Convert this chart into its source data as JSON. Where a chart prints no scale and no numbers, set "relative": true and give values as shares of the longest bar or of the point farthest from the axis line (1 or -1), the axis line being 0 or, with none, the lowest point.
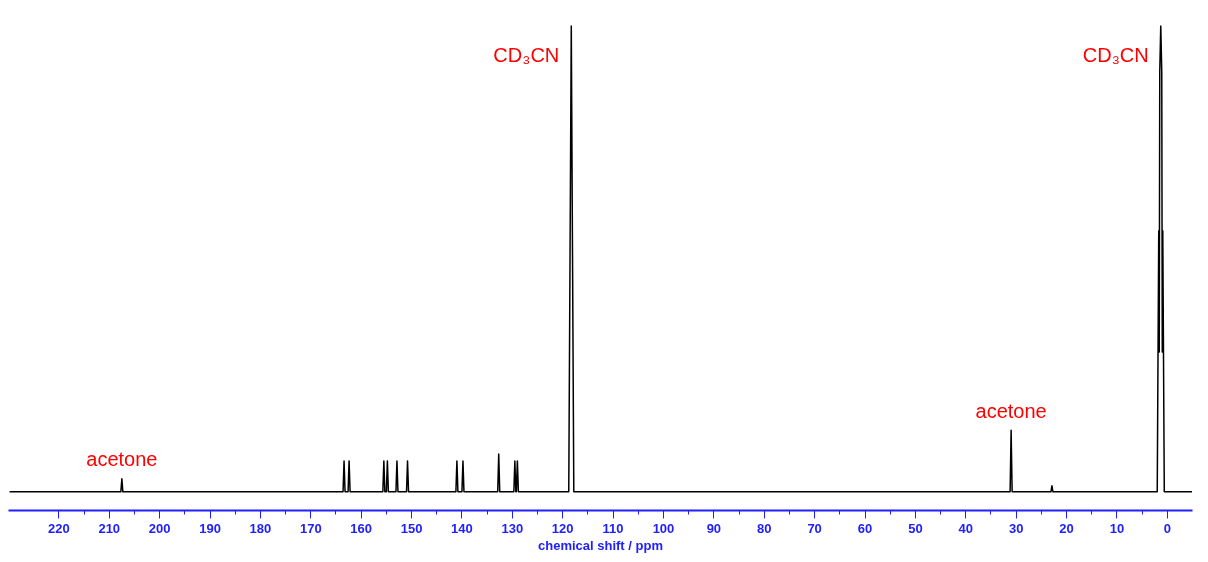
{
  "chart_data": {
    "type": "line",
    "relative": true,
    "xlabel": "chemical shift / ppm",
    "xlim": [
      230,
      -5
    ],
    "xticks": [
      220,
      210,
      200,
      190,
      180,
      170,
      160,
      150,
      140,
      130,
      120,
      110,
      100,
      90,
      80,
      70,
      60,
      50,
      40,
      30,
      20,
      10,
      0
    ],
    "grid": false,
    "marker": "none",
    "line_style": "solid",
    "tick_labels": "x",
    "series": [
      {
        "color": "#000000",
        "x": [
          229.8,
          207.7,
          207.5,
          207.3,
          163.6,
          163.4,
          163.2,
          162.6,
          162.4,
          162.2,
          155.7,
          155.5,
          155.3,
          155.0,
          154.8,
          154.6,
          153.1,
          152.9,
          152.7,
          151.0,
          150.8,
          150.6,
          141.2,
          141.0,
          140.8,
          140.0,
          139.8,
          139.6,
          132.9,
          132.7,
          132.5,
          129.7,
          129.5,
          129.3,
          129.2,
          129.0,
          128.8,
          118.8,
          118.3,
          117.8,
          31.2,
          31.0,
          30.8,
          23.1,
          22.9,
          22.7,
          2.0,
          1.7,
          1.6,
          1.5,
          1.3,
          1.1,
          1.0,
          0.9,
          0.6,
          -4.9
        ],
        "values": [
          0,
          0,
          0.028,
          0,
          0,
          0.066,
          0,
          0,
          0.066,
          0,
          0,
          0.066,
          0,
          0,
          0.066,
          0,
          0,
          0.066,
          0,
          0,
          0.066,
          0,
          0,
          0.066,
          0,
          0,
          0.066,
          0,
          0,
          0.081,
          0,
          0,
          0.066,
          0,
          0,
          0.066,
          0,
          0,
          1,
          0,
          0,
          0.132,
          0,
          0,
          0.013,
          0,
          0,
          0.56,
          0.3,
          0.9,
          1,
          0.9,
          0.3,
          0.56,
          0,
          0
        ]
      }
    ],
    "annotations": [
      {
        "text": "acetone",
        "x": 207.5,
        "y": 0.028
      },
      {
        "text": "CD₃CN",
        "x": 118.3,
        "y": 1
      },
      {
        "text": "acetone",
        "x": 31.0,
        "y": 0.132
      },
      {
        "text": "CD₃CN",
        "x": 1.3,
        "y": 1
      }
    ]
  }
}
